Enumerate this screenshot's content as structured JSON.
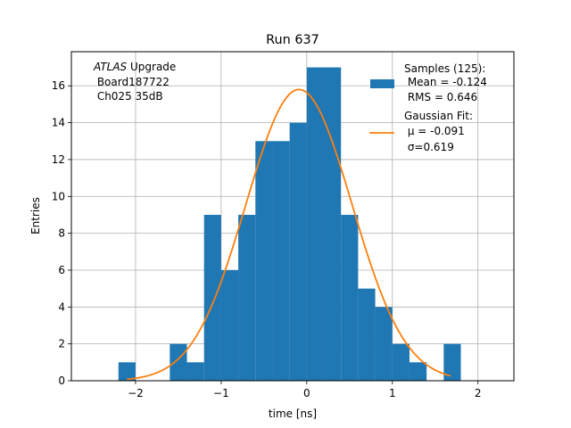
{
  "chart_data": {
    "type": "bar",
    "title": "Run 637",
    "xlabel": "time [ns]",
    "ylabel": "Entries",
    "xlim": [
      -2.75,
      2.42
    ],
    "ylim": [
      0,
      17.85
    ],
    "grid": true,
    "xticks": [
      -2,
      -1,
      0,
      1,
      2
    ],
    "xtick_labels": [
      "−2",
      "−1",
      "0",
      "1",
      "2"
    ],
    "yticks": [
      0,
      2,
      4,
      6,
      8,
      10,
      12,
      14,
      16
    ],
    "bar_width": 0.2,
    "series": [
      {
        "name": "Samples (125):",
        "kind": "histogram",
        "color": "#1f77b4",
        "x": [
          -2.2,
          -1.6,
          -1.4,
          -1.2,
          -1.0,
          -0.8,
          -0.6,
          -0.4,
          -0.2,
          0.0,
          0.2,
          0.4,
          0.6,
          0.8,
          1.0,
          1.2,
          1.6
        ],
        "values": [
          1,
          2,
          1,
          9,
          6,
          9,
          13,
          13,
          14,
          17,
          17,
          9,
          5,
          4,
          2,
          1,
          2
        ]
      },
      {
        "name": "Gaussian Fit:",
        "kind": "curve",
        "color": "#ff7f0e",
        "mu": -0.091,
        "sigma": 0.619,
        "amplitude": 15.8,
        "x_range": [
          -2.1,
          1.68
        ]
      }
    ],
    "legend": {
      "placement": "top-right",
      "samples_lines": [
        "Samples (125):",
        " Mean = -0.124",
        " RMS = 0.646"
      ],
      "fit_lines": [
        "Gaussian Fit:",
        " μ = -0.091",
        " σ=0.619"
      ]
    },
    "annotation": {
      "atlas": "ATLAS",
      "upgrade": " Upgrade",
      "line2": " Board187722",
      "line3": " Ch025 35dB"
    }
  }
}
